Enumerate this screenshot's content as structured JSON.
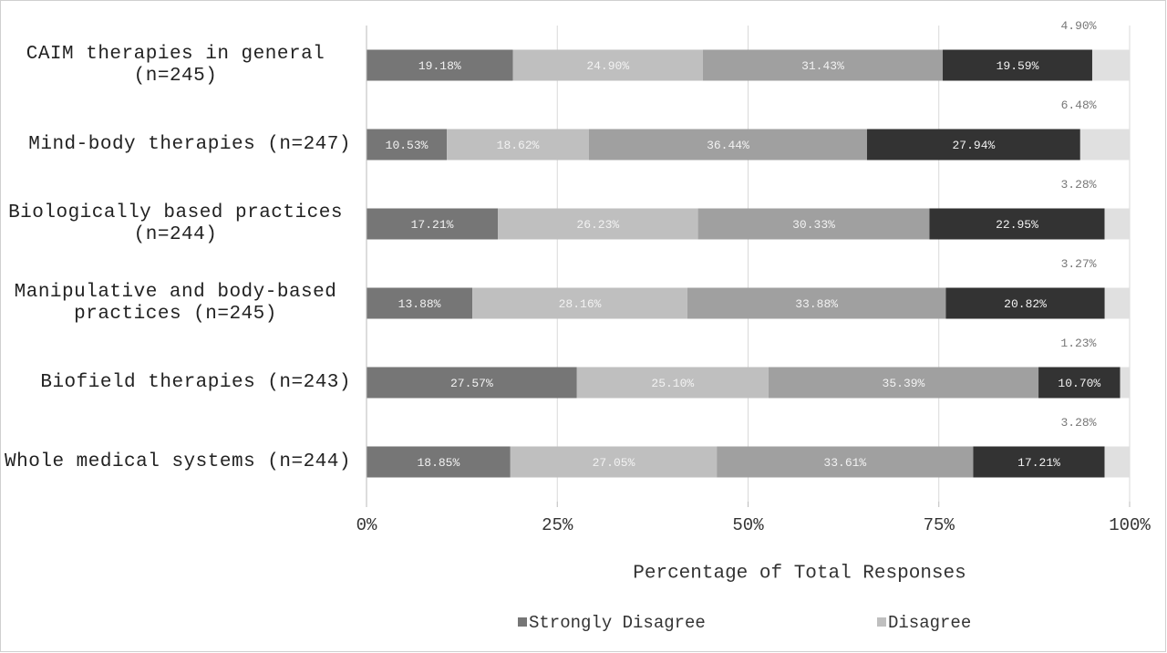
{
  "chart_data": {
    "type": "stacked_barh",
    "categories": [
      "CAIM therapies in general (n=245)",
      "Mind-body therapies (n=247)",
      "Biologically based practices (n=244)",
      "Manipulative and body-based practices (n=245)",
      "Biofield therapies (n=243)",
      "Whole medical systems (n=244)"
    ],
    "series": [
      {
        "name": "Strongly Disagree",
        "color": "#767676",
        "values": [
          19.18,
          10.53,
          17.21,
          13.88,
          27.57,
          18.85
        ],
        "value_labels": [
          "19.18%",
          "10.53%",
          "17.21%",
          "13.88%",
          "27.57%",
          "18.85%"
        ]
      },
      {
        "name": "Disagree",
        "color": "#bfbfbf",
        "values": [
          24.9,
          18.62,
          26.23,
          28.16,
          25.1,
          27.05
        ],
        "value_labels": [
          "24.90%",
          "18.62%",
          "26.23%",
          "28.16%",
          "25.10%",
          "27.05%"
        ]
      },
      {
        "color": "#a0a0a0",
        "values": [
          31.43,
          36.44,
          30.33,
          33.88,
          35.39,
          33.61
        ],
        "value_labels": [
          "31.43%",
          "36.44%",
          "30.33%",
          "33.88%",
          "35.39%",
          "33.61%"
        ]
      },
      {
        "color": "#333333",
        "values": [
          19.59,
          27.94,
          22.95,
          20.82,
          10.7,
          17.21
        ],
        "value_labels": [
          "19.59%",
          "27.94%",
          "22.95%",
          "20.82%",
          "10.70%",
          "17.21%"
        ]
      },
      {
        "color": "#e0e0e0",
        "values": [
          4.9,
          6.48,
          3.28,
          3.27,
          1.23,
          3.28
        ],
        "value_labels": [
          "4.90%",
          "6.48%",
          "3.28%",
          "3.27%",
          "1.23%",
          "3.28%"
        ]
      }
    ],
    "xlabel": "Percentage of Total Responses",
    "xlim": [
      0,
      100
    ],
    "xticks": [
      {
        "value": 0,
        "label": "0%"
      },
      {
        "value": 25,
        "label": "25%"
      },
      {
        "value": 50,
        "label": "50%"
      },
      {
        "value": 75,
        "label": "75%"
      },
      {
        "value": 100,
        "label": "100%"
      }
    ],
    "grid": true,
    "legend": "bottom"
  }
}
